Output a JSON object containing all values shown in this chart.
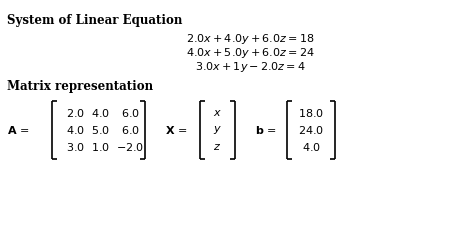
{
  "title": "System of Linear Equation",
  "subtitle": "Matrix representation",
  "eq1": "$2.0x + 4.0y + 6.0z = 18$",
  "eq2": "$4.0x + 5.0y + 6.0z = 24$",
  "eq3": "$3.0x + 1y - 2.0z = 4$",
  "A_matrix": [
    [
      2.0,
      4.0,
      6.0
    ],
    [
      4.0,
      5.0,
      6.0
    ],
    [
      3.0,
      1.0,
      -2.0
    ]
  ],
  "X_vec": [
    "x",
    "y",
    "z"
  ],
  "b_vec": [
    18.0,
    24.0,
    4.0
  ],
  "bg_color": "#ffffff",
  "text_color": "#000000",
  "title_fontsize": 8.5,
  "eq_fontsize": 8.0,
  "matrix_fontsize": 8.0,
  "bracket_lw": 1.2
}
